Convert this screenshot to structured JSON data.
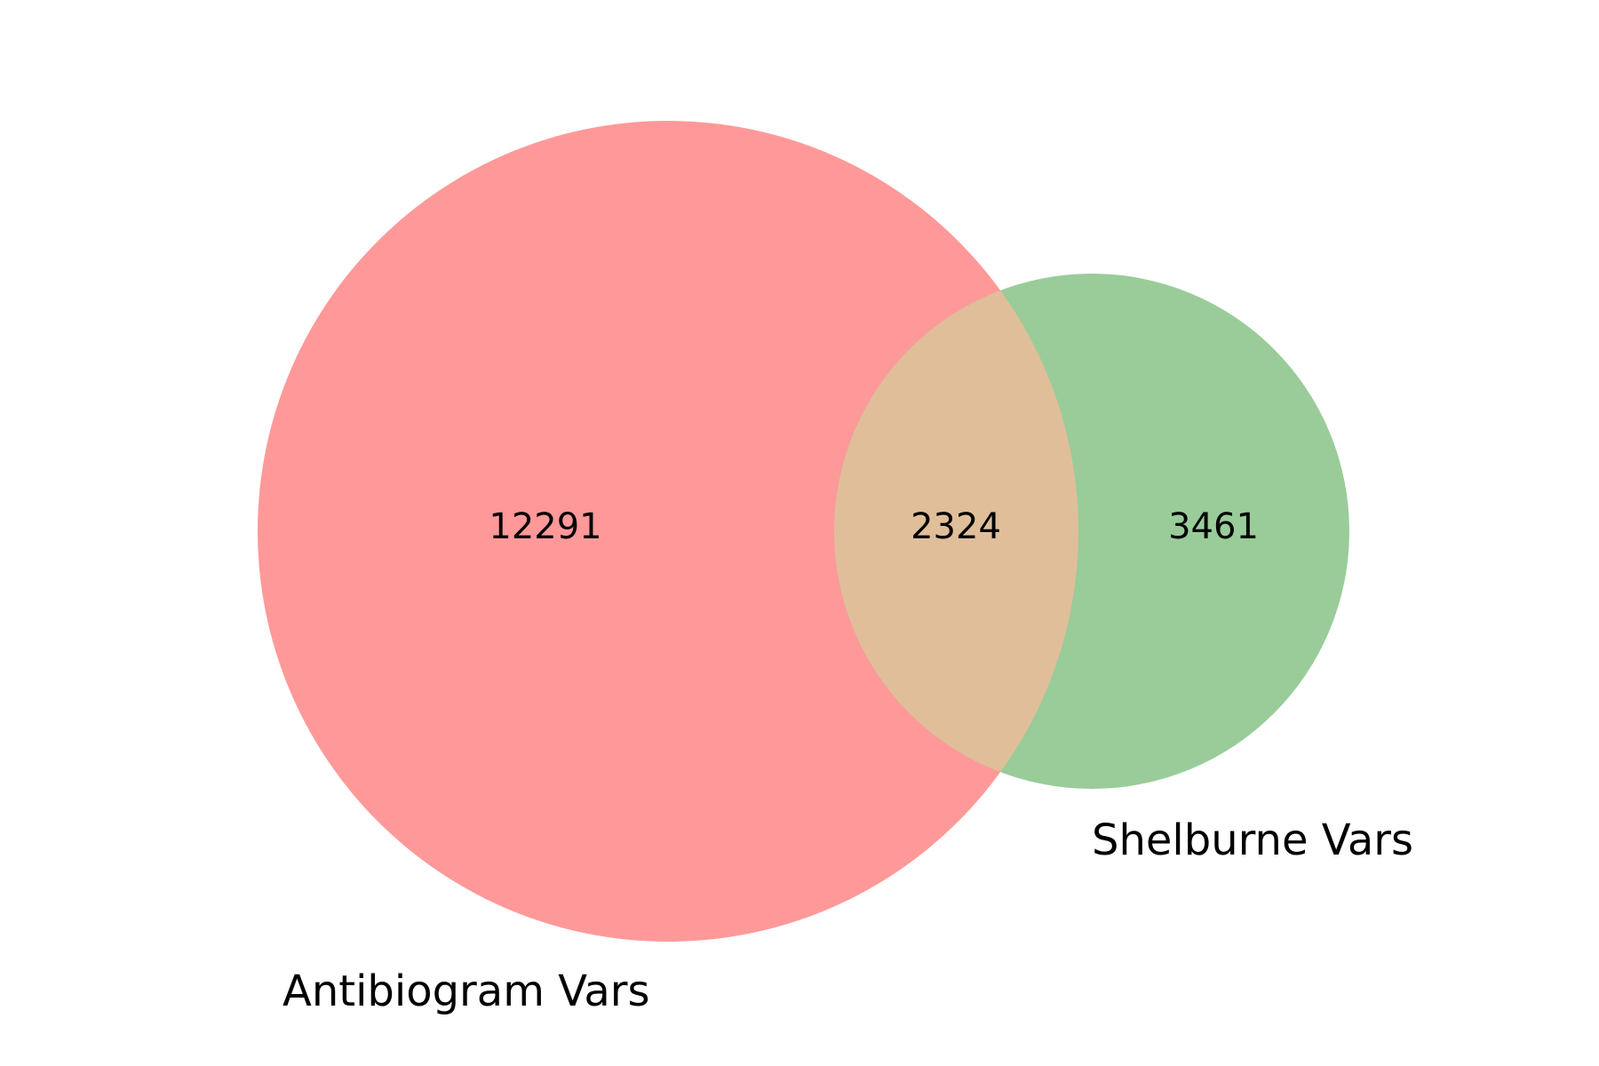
{
  "chart_data": {
    "type": "venn",
    "sets": [
      {
        "label": "Antibiogram Vars",
        "only_count": "12291",
        "color": "#ff9999"
      },
      {
        "label": "Shelburne Vars",
        "only_count": "3461",
        "color": "#99cc99"
      }
    ],
    "intersection": {
      "count": "2324",
      "color": "#e0be9a"
    }
  }
}
